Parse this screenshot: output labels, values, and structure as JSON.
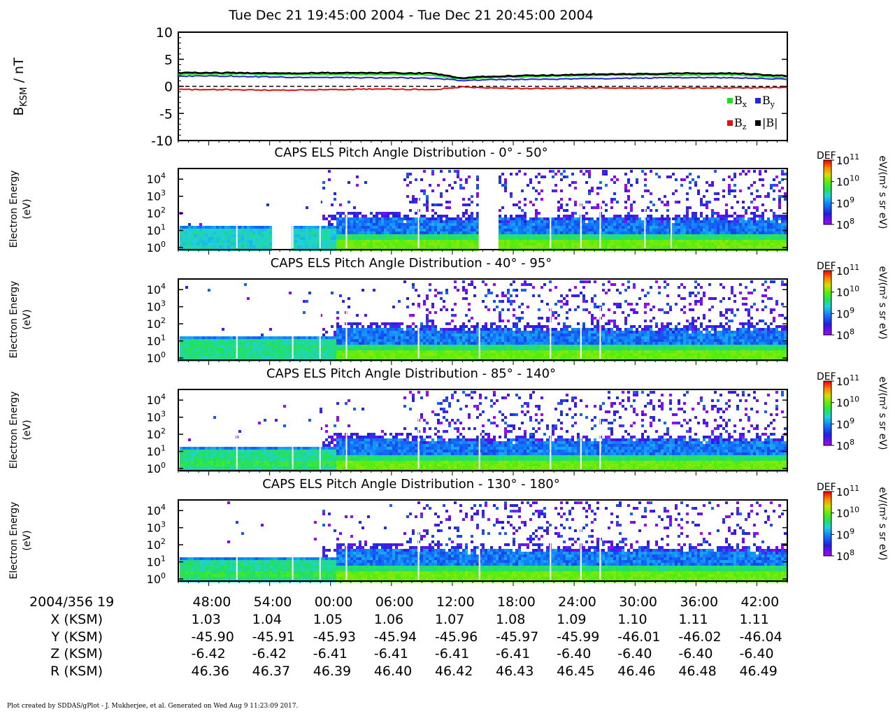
{
  "title": "Tue Dec 21 19:45:00 2004 - Tue Dec 21 20:45:00 2004",
  "footer": "Plot created by SDDAS/gPlot - J. Mukherjee, et al.  Generated on Wed Aug 9 11:23:09 2017.",
  "colors": {
    "bx": "#22dd22",
    "by": "#1f2ad6",
    "bz": "#e01010",
    "bmag": "#000000"
  },
  "chart_data": [
    {
      "type": "line",
      "ylabel_main": "B",
      "ylabel_sub": "KSM",
      "ylabel_unit": " / nT",
      "ylim": [
        -10,
        10
      ],
      "yticks": [
        10,
        5,
        0,
        -5,
        -10
      ],
      "zero_line": "dashed",
      "x_minutes": [
        0,
        5,
        10,
        15,
        20,
        25,
        28,
        30,
        35,
        40,
        45,
        50,
        55,
        60
      ],
      "series": [
        {
          "name": "Bx",
          "name_main": "B",
          "name_sub": "x",
          "color": "#22dd22",
          "values": [
            2.2,
            2.3,
            2.2,
            2.2,
            2.2,
            2.1,
            1.3,
            1.6,
            1.8,
            2.0,
            2.1,
            2.1,
            2.1,
            1.6
          ]
        },
        {
          "name": "By",
          "name_main": "B",
          "name_sub": "y",
          "color": "#1f2ad6",
          "values": [
            1.9,
            1.9,
            1.7,
            1.6,
            1.6,
            1.5,
            1.1,
            1.2,
            1.3,
            1.4,
            1.5,
            1.6,
            1.6,
            1.3
          ]
        },
        {
          "name": "Bz",
          "name_main": "B",
          "name_sub": "z",
          "color": "#e01010",
          "values": [
            -0.6,
            -0.6,
            -0.7,
            -0.6,
            -0.5,
            -0.6,
            -0.1,
            -0.3,
            -0.4,
            -0.3,
            -0.3,
            -0.3,
            -0.3,
            -0.2
          ]
        },
        {
          "name": "|B|",
          "name_main": "|B|",
          "name_sub": "",
          "color": "#000000",
          "values": [
            2.5,
            2.5,
            2.4,
            2.5,
            2.5,
            2.4,
            1.5,
            1.8,
            2.0,
            2.2,
            2.3,
            2.4,
            2.4,
            1.9
          ]
        }
      ]
    },
    {
      "type": "heatmap",
      "title": "CAPS ELS Pitch Angle Distribution - 0° - 50°",
      "ylabel": [
        "Electron Energy",
        "(eV)"
      ],
      "ylim_log10": [
        0,
        4.5
      ],
      "yticks_log10": [
        0,
        1,
        2,
        3,
        4
      ],
      "x_minutes": [
        0,
        60
      ],
      "data_gaps_minutes": [
        [
          9,
          11
        ],
        [
          29.5,
          31.5
        ]
      ],
      "colorbar": {
        "label": "DEF",
        "unit": "eV/(m² s sr eV)",
        "range_log10": [
          8,
          11
        ],
        "ticks_log10": [
          8,
          9,
          10,
          11
        ]
      }
    },
    {
      "type": "heatmap",
      "title": "CAPS ELS Pitch Angle Distribution - 40° - 95°",
      "ylabel": [
        "Electron Energy",
        "(eV)"
      ],
      "ylim_log10": [
        0,
        4.5
      ],
      "yticks_log10": [
        0,
        1,
        2,
        3,
        4
      ],
      "x_minutes": [
        0,
        60
      ],
      "data_gaps_minutes": [],
      "colorbar": {
        "label": "DEF",
        "unit": "eV/(m² s sr eV)",
        "range_log10": [
          8,
          11
        ],
        "ticks_log10": [
          8,
          9,
          10,
          11
        ]
      }
    },
    {
      "type": "heatmap",
      "title": "CAPS ELS Pitch Angle Distribution - 85° - 140°",
      "ylabel": [
        "Electron Energy",
        "(eV)"
      ],
      "ylim_log10": [
        0,
        4.5
      ],
      "yticks_log10": [
        0,
        1,
        2,
        3,
        4
      ],
      "x_minutes": [
        0,
        60
      ],
      "data_gaps_minutes": [],
      "colorbar": {
        "label": "DEF",
        "unit": "eV/(m² s sr eV)",
        "range_log10": [
          8,
          11
        ],
        "ticks_log10": [
          8,
          9,
          10,
          11
        ]
      }
    },
    {
      "type": "heatmap",
      "title": "CAPS ELS Pitch Angle Distribution - 130° - 180°",
      "ylabel": [
        "Electron Energy",
        "(eV)"
      ],
      "ylim_log10": [
        0,
        4.5
      ],
      "yticks_log10": [
        0,
        1,
        2,
        3,
        4
      ],
      "x_minutes": [
        0,
        60
      ],
      "data_gaps_minutes": [],
      "colorbar": {
        "label": "DEF",
        "unit": "eV/(m² s sr eV)",
        "range_log10": [
          8,
          11
        ],
        "ticks_log10": [
          8,
          9,
          10,
          11
        ]
      }
    }
  ],
  "ephemeris": {
    "date_label": "2004/356 19",
    "row_labels": [
      "X (KSM)",
      "Y (KSM)",
      "Z (KSM)",
      "R (KSM)"
    ],
    "tick_minutes": [
      3,
      9,
      15,
      21,
      27,
      33,
      39,
      45,
      51,
      57
    ],
    "times": [
      "48:00",
      "54:00",
      "00:00",
      "06:00",
      "12:00",
      "18:00",
      "24:00",
      "30:00",
      "36:00",
      "42:00"
    ],
    "x": [
      "1.03",
      "1.04",
      "1.05",
      "1.06",
      "1.07",
      "1.08",
      "1.09",
      "1.10",
      "1.11",
      "1.11"
    ],
    "y": [
      "-45.90",
      "-45.91",
      "-45.93",
      "-45.94",
      "-45.96",
      "-45.97",
      "-45.99",
      "-46.01",
      "-46.02",
      "-46.04"
    ],
    "z": [
      "-6.42",
      "-6.42",
      "-6.41",
      "-6.41",
      "-6.41",
      "-6.41",
      "-6.40",
      "-6.40",
      "-6.40",
      "-6.40"
    ],
    "r": [
      "46.36",
      "46.37",
      "46.39",
      "46.40",
      "46.42",
      "46.43",
      "46.45",
      "46.46",
      "46.48",
      "46.49"
    ]
  }
}
